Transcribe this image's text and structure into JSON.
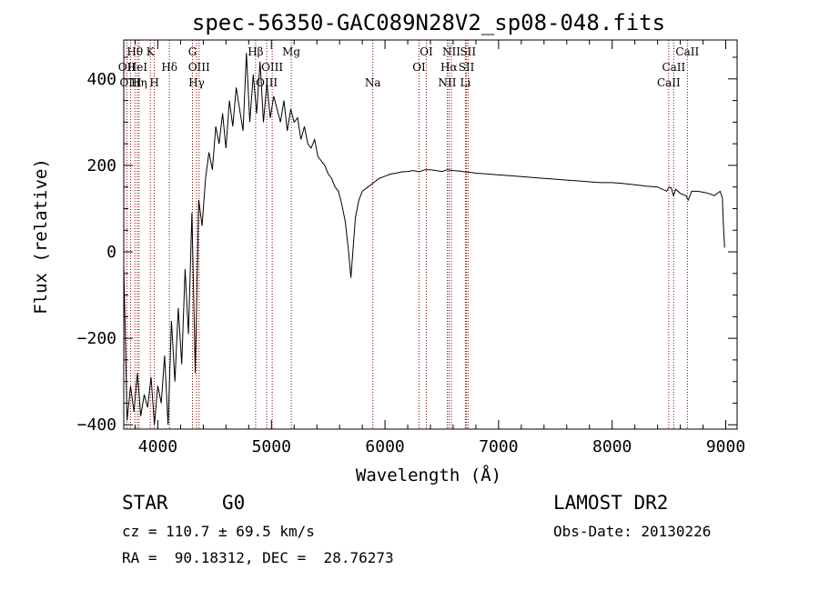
{
  "chart_data": {
    "type": "line",
    "title": "spec-56350-GAC089N28V2_sp08-048.fits",
    "xlabel": "Wavelength (Å)",
    "ylabel": "Flux (relative)",
    "xlim": [
      3700,
      9100
    ],
    "ylim": [
      -410,
      490
    ],
    "x_ticks": [
      4000,
      5000,
      6000,
      7000,
      8000,
      9000
    ],
    "x_tick_labels": [
      "4000",
      "5000",
      "6000",
      "7000",
      "8000",
      "9000"
    ],
    "y_ticks": [
      -400,
      -200,
      0,
      200,
      400
    ],
    "y_tick_labels": [
      "−400",
      "−200",
      "0",
      "200",
      "400"
    ],
    "grid": false,
    "series": [
      {
        "x": [
          3700,
          3730,
          3760,
          3790,
          3820,
          3850,
          3880,
          3910,
          3940,
          3970,
          4000,
          4030,
          4060,
          4090,
          4120,
          4150,
          4180,
          4210,
          4240,
          4270,
          4300,
          4330,
          4360,
          4390,
          4420,
          4450,
          4480,
          4510,
          4540,
          4570,
          4600,
          4630,
          4660,
          4690,
          4720,
          4750,
          4780,
          4810,
          4840,
          4870,
          4900,
          4930,
          4960,
          4990,
          5020,
          5050,
          5080,
          5110,
          5140,
          5170,
          5200,
          5230,
          5260,
          5290,
          5320,
          5350,
          5380,
          5410,
          5440,
          5470,
          5500,
          5530,
          5560,
          5590,
          5620,
          5650,
          5680,
          5700,
          5720,
          5740,
          5770,
          5800,
          5850,
          5900,
          5950,
          6000,
          6050,
          6100,
          6150,
          6200,
          6250,
          6300,
          6350,
          6400,
          6450,
          6500,
          6550,
          6600,
          6650,
          6700,
          6750,
          6800,
          6900,
          7000,
          7100,
          7200,
          7300,
          7400,
          7500,
          7600,
          7700,
          7800,
          7900,
          8000,
          8100,
          8200,
          8300,
          8400,
          8480,
          8500,
          8520,
          8540,
          8560,
          8600,
          8650,
          8670,
          8700,
          8750,
          8800,
          8850,
          8900,
          8950,
          8970,
          8980,
          8990
        ],
        "y": [
          -30,
          -390,
          -310,
          -370,
          -280,
          -380,
          -330,
          -360,
          -290,
          -400,
          -310,
          -350,
          -240,
          -400,
          -160,
          -300,
          -130,
          -260,
          -40,
          -190,
          90,
          -280,
          120,
          60,
          170,
          230,
          190,
          290,
          250,
          320,
          240,
          350,
          290,
          380,
          330,
          280,
          460,
          300,
          410,
          320,
          440,
          300,
          390,
          310,
          360,
          330,
          300,
          350,
          280,
          330,
          300,
          310,
          260,
          290,
          250,
          240,
          260,
          220,
          210,
          200,
          180,
          170,
          150,
          140,
          110,
          70,
          0,
          -60,
          10,
          80,
          120,
          140,
          150,
          160,
          170,
          175,
          180,
          182,
          185,
          186,
          188,
          185,
          190,
          190,
          188,
          186,
          190,
          188,
          187,
          185,
          184,
          182,
          180,
          178,
          176,
          174,
          172,
          170,
          168,
          166,
          164,
          162,
          160,
          160,
          158,
          155,
          152,
          150,
          140,
          150,
          148,
          130,
          145,
          135,
          130,
          120,
          140,
          140,
          138,
          135,
          130,
          140,
          125,
          60,
          10
        ]
      }
    ],
    "lines": [
      {
        "name": "Hθ",
        "x": 3798
      },
      {
        "name": "OII",
        "x": 3727
      },
      {
        "name": "OIII",
        "x": 3760
      },
      {
        "name": "HeI",
        "x": 3820
      },
      {
        "name": "Hη",
        "x": 3835
      },
      {
        "name": "K",
        "x": 3934
      },
      {
        "name": "H",
        "x": 3969
      },
      {
        "name": "Hδ",
        "x": 4102
      },
      {
        "name": "G",
        "x": 4305
      },
      {
        "name": "OIII",
        "x": 4363
      },
      {
        "name": "Hγ",
        "x": 4341
      },
      {
        "name": "Hβ",
        "x": 4861
      },
      {
        "name": "OIII",
        "x": 4959
      },
      {
        "name": "OIII",
        "x": 5007
      },
      {
        "name": "Mg",
        "x": 5175
      },
      {
        "name": "Na",
        "x": 5893
      },
      {
        "name": "OI",
        "x": 6300
      },
      {
        "name": "OI",
        "x": 6364
      },
      {
        "name": "NII",
        "x": 6548
      },
      {
        "name": "Hα",
        "x": 6563
      },
      {
        "name": "NII",
        "x": 6584
      },
      {
        "name": "SII",
        "x": 6717
      },
      {
        "name": "SII",
        "x": 6731
      },
      {
        "name": "Li",
        "x": 6708
      },
      {
        "name": "CaII",
        "x": 8498
      },
      {
        "name": "CaII",
        "x": 8542
      },
      {
        "name": "CaII",
        "x": 8662
      }
    ],
    "line_label_rows": [
      [
        {
          "t": "Hθ",
          "x": 3798
        },
        {
          "t": "K",
          "x": 3934
        },
        {
          "t": "G",
          "x": 4305
        },
        {
          "t": "Hβ",
          "x": 4861
        },
        {
          "t": "Mg",
          "x": 5175
        },
        {
          "t": "OI",
          "x": 6364
        },
        {
          "t": "NII",
          "x": 6584
        },
        {
          "t": "SII",
          "x": 6731
        },
        {
          "t": "CaII",
          "x": 8662
        }
      ],
      [
        {
          "t": "OII",
          "x": 3727
        },
        {
          "t": "HeI",
          "x": 3820
        },
        {
          "t": "Hδ",
          "x": 4102
        },
        {
          "t": "OIII",
          "x": 4363
        },
        {
          "t": "OIII",
          "x": 5007
        },
        {
          "t": "OI",
          "x": 6300
        },
        {
          "t": "Hα",
          "x": 6563
        },
        {
          "t": "SII",
          "x": 6717
        },
        {
          "t": "CaII",
          "x": 8542
        }
      ],
      [
        {
          "t": "OIII",
          "x": 3760
        },
        {
          "t": "Hη",
          "x": 3835
        },
        {
          "t": "H",
          "x": 3969
        },
        {
          "t": "Hγ",
          "x": 4341
        },
        {
          "t": "OIII",
          "x": 4959
        },
        {
          "t": "Na",
          "x": 5893
        },
        {
          "t": "NII",
          "x": 6548
        },
        {
          "t": "Li",
          "x": 6708
        },
        {
          "t": "CaII",
          "x": 8498
        }
      ]
    ]
  },
  "info": {
    "object_class": "STAR",
    "subclass": "G0",
    "survey": "LAMOST DR2",
    "redshift": "cz = 110.7 ± 69.5 km/s",
    "obs_date": "Obs-Date: 20130226",
    "coords": "RA =  90.18312, DEC =  28.76273"
  },
  "colors": {
    "spectrum": "#000000",
    "line_markers": "#8b0000",
    "axes": "#000000",
    "background": "#ffffff"
  }
}
